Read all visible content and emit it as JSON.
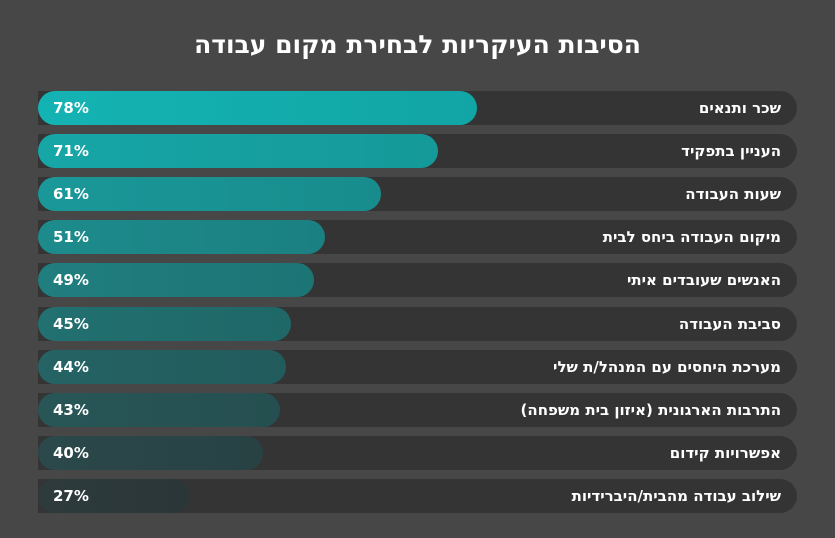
{
  "chart_data": {
    "type": "bar",
    "orientation": "horizontal",
    "title": "הסיבות העיקריות לבחירת מקום עבודה",
    "categories": [
      "שכר ותנאים",
      "העניין בתפקיד",
      "שעות העבודה",
      "מיקום העבודה ביחס לבית",
      "האנשים שעובדים איתי",
      "סביבת העבודה",
      "מערכת היחסים עם המנהל/ת שלי",
      "התרבות הארגונית (איזון בית משפחה)",
      "אפשרויות קידום",
      "שילוב עבודה מהבית/היברידיות"
    ],
    "values": [
      78,
      71,
      61,
      51,
      49,
      45,
      44,
      43,
      40,
      27
    ],
    "value_labels": [
      "78%",
      "71%",
      "61%",
      "51%",
      "49%",
      "45%",
      "44%",
      "43%",
      "40%",
      "27%"
    ],
    "unit": "%",
    "colors": {
      "top": "#14b3b3",
      "bottom": "#2e3b3d",
      "track": "#343434",
      "background": "#474747"
    }
  }
}
